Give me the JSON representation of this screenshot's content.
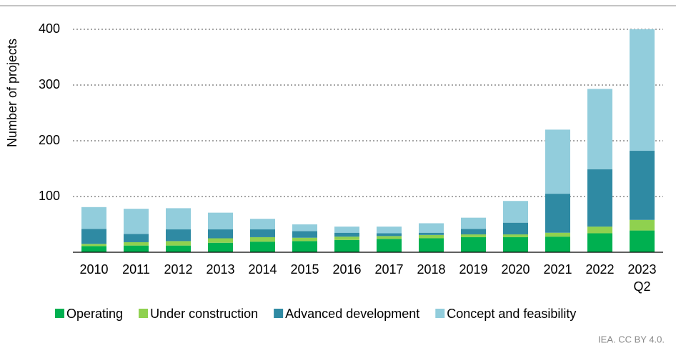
{
  "chart_data": {
    "type": "stacked_bar",
    "y_label": "Number of projects",
    "source": "IEA. CC BY 4.0.",
    "categories": [
      "2010",
      "2011",
      "2012",
      "2013",
      "2014",
      "2015",
      "2016",
      "2017",
      "2018",
      "2019",
      "2020",
      "2021",
      "2022",
      "2023\nQ2"
    ],
    "series": [
      {
        "name": "Operating",
        "color": "#00b050",
        "values": [
          11,
          12,
          12,
          17,
          19,
          20,
          22,
          24,
          25,
          27,
          27,
          28,
          34,
          39
        ]
      },
      {
        "name": "Under construction",
        "color": "#8fd14f",
        "values": [
          4,
          6,
          8,
          8,
          8,
          6,
          6,
          5,
          6,
          5,
          5,
          7,
          12,
          19
        ]
      },
      {
        "name": "Advanced development",
        "color": "#2f8aa3",
        "values": [
          27,
          15,
          21,
          16,
          14,
          12,
          7,
          5,
          4,
          10,
          21,
          70,
          103,
          124
        ]
      },
      {
        "name": "Concept and feasibility",
        "color": "#92cddc",
        "values": [
          39,
          45,
          38,
          30,
          19,
          12,
          11,
          12,
          17,
          20,
          39,
          115,
          144,
          218
        ]
      }
    ],
    "ylim": [
      0,
      400
    ],
    "yticks": [
      100,
      200,
      300,
      400
    ],
    "grid": true,
    "legend": "bottom"
  }
}
